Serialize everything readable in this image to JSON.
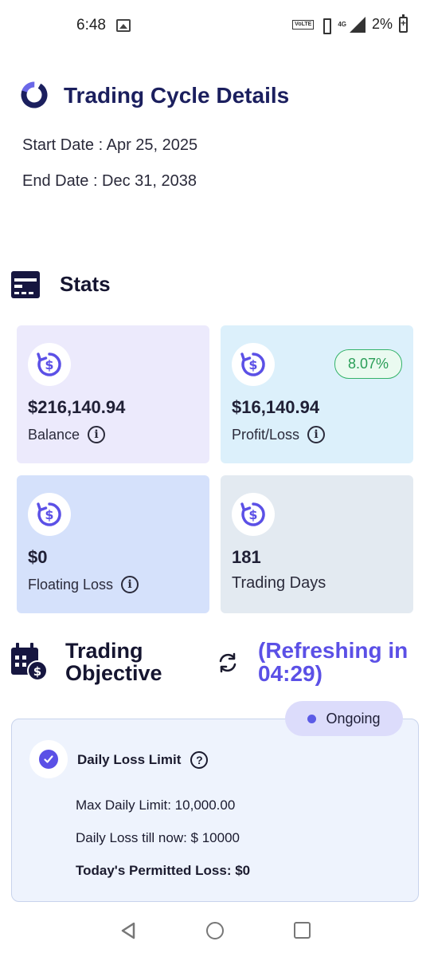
{
  "status_bar": {
    "time": "6:48",
    "network": "4G",
    "volte": "VoLTE",
    "battery": "2%"
  },
  "header": {
    "title": "Trading Cycle Details",
    "start_date": "Start Date : Apr 25, 2025",
    "end_date": "End Date : Dec 31, 2038"
  },
  "stats": {
    "title": "Stats",
    "cards": [
      {
        "value": "$216,140.94",
        "label": "Balance",
        "icon": "dollar-refresh-icon",
        "color": "#eceafc"
      },
      {
        "value": "$16,140.94",
        "label": "Profit/Loss",
        "badge": "8.07%",
        "icon": "dollar-refresh-icon",
        "color": "#dcf0fb"
      },
      {
        "value": "$0",
        "label": "Floating Loss",
        "icon": "dollar-refresh-icon",
        "color": "#d5e1fb"
      },
      {
        "value": "181",
        "label": "Trading Days",
        "icon": "dollar-refresh-icon",
        "color": "#e3eaf1"
      }
    ]
  },
  "objective": {
    "title": "Trading Objective",
    "refresh_text": "(Refreshing in 04:29)",
    "status": "Ongoing",
    "name": "Daily Loss Limit",
    "max_daily_limit": "Max Daily Limit: 10,000.00",
    "daily_loss": "Daily Loss till now: $ 10000",
    "permitted_loss": "Today's Permitted Loss: $0"
  },
  "colors": {
    "accent": "#5b50e6",
    "title": "#1b1f5e",
    "success": "#2a9e58"
  }
}
